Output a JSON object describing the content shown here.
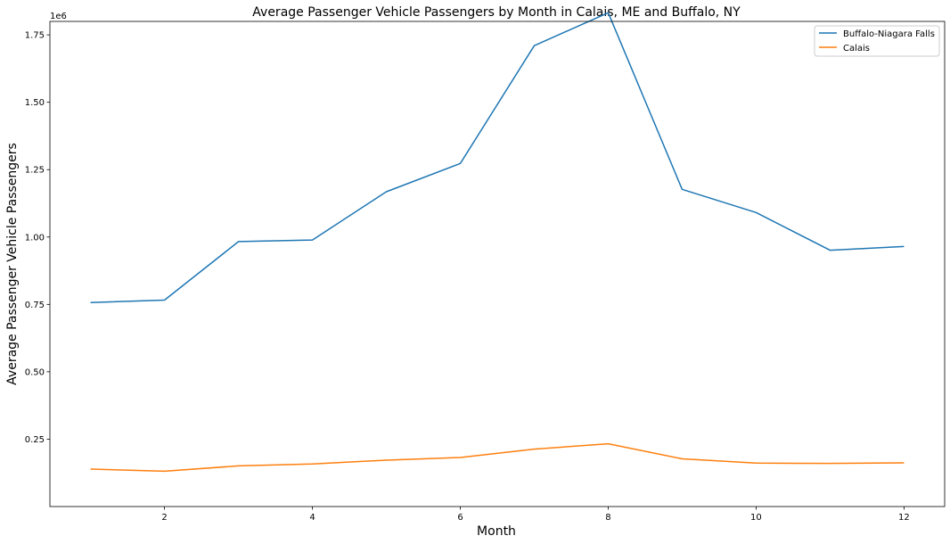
{
  "chart_data": {
    "type": "line",
    "title": "Average Passenger Vehicle Passengers by Month in Calais, ME and Buffalo, NY",
    "xlabel": "Month",
    "ylabel": "Average Passenger Vehicle Passengers",
    "y_offset_label": "1e6",
    "xlim": [
      0.45,
      12.55
    ],
    "ylim": [
      0.0,
      1.8
    ],
    "x_ticks": [
      2,
      4,
      6,
      8,
      10,
      12
    ],
    "x_tick_labels": [
      "2",
      "4",
      "6",
      "8",
      "10",
      "12"
    ],
    "y_ticks": [
      0.25,
      0.5,
      0.75,
      1.0,
      1.25,
      1.5,
      1.75
    ],
    "y_tick_labels": [
      "0.25",
      "0.50",
      "0.75",
      "1.00",
      "1.25",
      "1.50",
      "1.75"
    ],
    "grid": false,
    "legend_position": "top-right",
    "x": [
      1,
      2,
      3,
      4,
      5,
      6,
      7,
      8,
      9,
      10,
      11,
      12
    ],
    "series": [
      {
        "name": "Buffalo-Niagara Falls",
        "color": "#1f77b4",
        "values": [
          757000,
          766000,
          983000,
          989000,
          1168000,
          1273000,
          1710000,
          1832000,
          1177000,
          1091000,
          951000,
          965000
        ]
      },
      {
        "name": "Calais",
        "color": "#ff7f0e",
        "values": [
          139000,
          131000,
          151000,
          158000,
          172000,
          182000,
          213000,
          233000,
          177000,
          161000,
          160000,
          162000
        ]
      }
    ]
  }
}
